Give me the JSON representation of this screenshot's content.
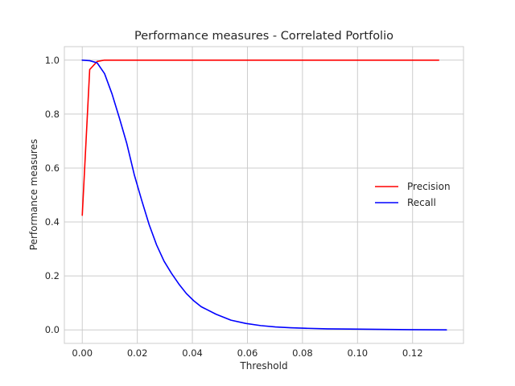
{
  "chart_data": {
    "type": "line",
    "title": "Performance measures - Correlated Portfolio",
    "xlabel": "Threshold",
    "ylabel": "Performance measures",
    "xlim": [
      -0.0065,
      0.1385
    ],
    "ylim": [
      -0.05,
      1.05
    ],
    "xticks": [
      0.0,
      0.02,
      0.04,
      0.06,
      0.08,
      0.1,
      0.12
    ],
    "xtick_labels": [
      "0.00",
      "0.02",
      "0.04",
      "0.06",
      "0.08",
      "0.10",
      "0.12"
    ],
    "yticks": [
      0.0,
      0.2,
      0.4,
      0.6,
      0.8,
      1.0
    ],
    "ytick_labels": [
      "0.0",
      "0.2",
      "0.4",
      "0.6",
      "0.8",
      "1.0"
    ],
    "grid": true,
    "legend_position": "center-right",
    "series": [
      {
        "name": "Precision",
        "color": "#ff0000",
        "x": [
          0.0,
          0.0027,
          0.0054,
          0.0081,
          0.0108,
          0.0135,
          0.02,
          0.04,
          0.06,
          0.08,
          0.1,
          0.12,
          0.1295
        ],
        "y": [
          0.425,
          0.965,
          0.995,
          1.0,
          1.0,
          1.0,
          1.0,
          1.0,
          1.0,
          1.0,
          1.0,
          1.0,
          1.0
        ]
      },
      {
        "name": "Recall",
        "color": "#0000ff",
        "x": [
          0.0,
          0.0027,
          0.0054,
          0.0081,
          0.0108,
          0.0135,
          0.0162,
          0.0189,
          0.0216,
          0.0243,
          0.027,
          0.0297,
          0.0324,
          0.0351,
          0.0378,
          0.0405,
          0.0432,
          0.0486,
          0.054,
          0.0594,
          0.0648,
          0.0702,
          0.0756,
          0.081,
          0.0891,
          0.0972,
          0.108,
          0.1188,
          0.1323
        ],
        "y": [
          1.0,
          0.998,
          0.99,
          0.95,
          0.875,
          0.785,
          0.69,
          0.575,
          0.48,
          0.39,
          0.315,
          0.255,
          0.21,
          0.17,
          0.135,
          0.108,
          0.086,
          0.058,
          0.036,
          0.024,
          0.016,
          0.011,
          0.008,
          0.006,
          0.004,
          0.003,
          0.002,
          0.001,
          0.0
        ]
      }
    ]
  }
}
